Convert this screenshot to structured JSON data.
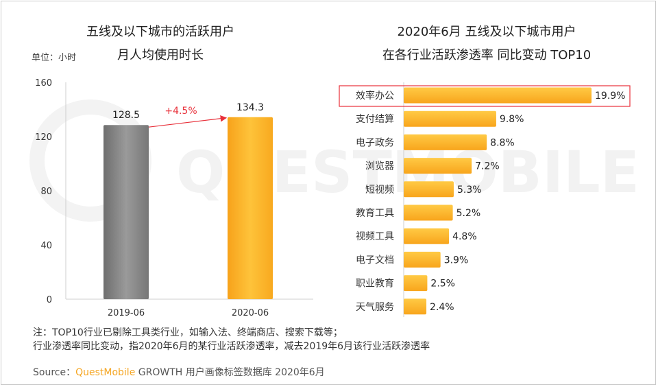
{
  "footnote": {
    "line1": "注：TOP10行业已剔除工具类行业，如输入法、终端商店、搜索下载等；",
    "line2": "行业渗透率同比变动，指2020年6月的某行业活跃渗透率，减去2019年6月该行业活跃渗透率"
  },
  "source": {
    "label": "Source：",
    "brand": "QuestMobile",
    "text": "GROWTH 用户画像标签数据库 2020年6月"
  },
  "watermark": "QUESTMOBILE",
  "colors": {
    "bar_gray": "#8c8c8c",
    "bar_orange": "#fdb52a",
    "growth_arrow": "#e8303a",
    "highlight_box": "#e8303a",
    "brand": "#f5a623"
  },
  "chart_data": [
    {
      "type": "bar",
      "title": [
        "五线及以下城市的活跃用户",
        "月人均使用时长"
      ],
      "unit_label": "单位：小时",
      "categories": [
        "2019-06",
        "2020-06"
      ],
      "values": [
        128.5,
        134.3
      ],
      "data_labels": [
        "128.5",
        "134.3"
      ],
      "yticks": [
        0,
        40,
        80,
        120,
        160
      ],
      "ylim": [
        0,
        160
      ],
      "growth_label": "+4.5%",
      "grid": false
    },
    {
      "type": "bar",
      "orientation": "horizontal",
      "title": [
        "2020年6月 五线及以下城市用户",
        "在各行业活跃渗透率 同比变动 TOP10"
      ],
      "categories": [
        "效率办公",
        "支付结算",
        "电子政务",
        "浏览器",
        "短视频",
        "教育工具",
        "视频工具",
        "电子文档",
        "职业教育",
        "天气服务"
      ],
      "values": [
        19.9,
        9.8,
        8.8,
        7.2,
        5.3,
        5.2,
        4.8,
        3.9,
        2.5,
        2.4
      ],
      "data_labels": [
        "19.9%",
        "9.8%",
        "8.8%",
        "7.2%",
        "5.3%",
        "5.2%",
        "4.8%",
        "3.9%",
        "2.5%",
        "2.4%"
      ],
      "highlighted_category": "效率办公",
      "grid": false
    }
  ]
}
